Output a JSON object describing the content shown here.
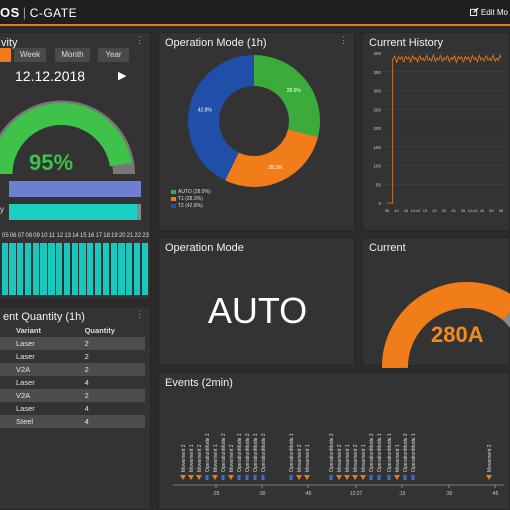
{
  "header": {
    "brand": "OS",
    "app_name": "C-GATE",
    "edit_label": "Edit Mo",
    "accent_color": "#f07d1a"
  },
  "availability": {
    "title": "vity",
    "tabs": [
      "",
      "Week",
      "Month",
      "Year"
    ],
    "active_tab_index": 0,
    "date": "12.12.2018",
    "next_icon": "play-arrow-icon",
    "gauge_percent": 95,
    "gauge_label": "95%",
    "gauge_color": "#3ec24a",
    "bar2_label": "y",
    "bar1_color": "#6c7fd1",
    "bar2_color": "#19cfc2",
    "hours": [
      "05",
      "06",
      "07",
      "08",
      "09",
      "10",
      "11",
      "12",
      "13",
      "14",
      "15",
      "16",
      "17",
      "18",
      "19",
      "20",
      "21",
      "22",
      "23"
    ],
    "hour_bar_color": "#19c7bc"
  },
  "quantity": {
    "title": "ent Quantity (1h)",
    "columns": [
      "Variant",
      "Quantity"
    ],
    "rows": [
      {
        "variant": "Laser",
        "quantity": "2"
      },
      {
        "variant": "Laser",
        "quantity": "2"
      },
      {
        "variant": "V2A",
        "quantity": "2"
      },
      {
        "variant": "Laser",
        "quantity": "4"
      },
      {
        "variant": "V2A",
        "quantity": "2"
      },
      {
        "variant": "Laser",
        "quantity": "4"
      },
      {
        "variant": "Steel",
        "quantity": "4"
      }
    ]
  },
  "operation_mode_1h": {
    "title": "Operation Mode (1h)",
    "legend": [
      "AUTO (28.9%)",
      "T1 (28.3%)",
      "T2 (42.8%)"
    ],
    "slice_labels": [
      "28.9%",
      "28.3%",
      "42.8%"
    ],
    "colors": [
      "#3bab3b",
      "#f07d1a",
      "#1f4fa8"
    ],
    "values": [
      28.9,
      28.3,
      42.8
    ]
  },
  "current_history": {
    "title": "Current History",
    "y_ticks": [
      "400",
      "350",
      "300",
      "250",
      "200",
      "150",
      "100",
      "50",
      "0"
    ],
    "x_ticks": [
      "35",
      "40",
      "45",
      "12:42",
      "15",
      "20",
      "25",
      "30",
      "35",
      "12:43",
      "45",
      "50",
      "55"
    ],
    "line_color": "#f07d1a"
  },
  "operation_mode": {
    "title": "Operation Mode",
    "value": "AUTO"
  },
  "current": {
    "title": "Current",
    "value": "280A",
    "gauge_color": "#f07d1a"
  },
  "events": {
    "title": "Events (2min)",
    "labels": [
      "Movement 2",
      "Movement 1",
      "Movement 2",
      "OperationMode 1",
      "Movement 1",
      "OperationMode 2",
      "Movement 2",
      "OperationMode 1",
      "OperationMode 2",
      "OperationMode 1",
      "OperationMode 2",
      "OperationMode 1",
      "Movement 2",
      "Movement 1",
      "OperationMode 2",
      "Movement 2",
      "Movement 1",
      "Movement 2",
      "Movement 1",
      "OperationMode 2",
      "OperationMode 1",
      "OperationMode 1",
      "Movement 1",
      "OperationMode 2",
      "OperationMode 1",
      "Movement 2"
    ],
    "axis_ticks": [
      ":25",
      ":30",
      ":45",
      "12:27",
      ":15",
      ":30",
      ":45"
    ],
    "marker_colors": [
      "#f07d1a",
      "#3a6fd8"
    ]
  }
}
